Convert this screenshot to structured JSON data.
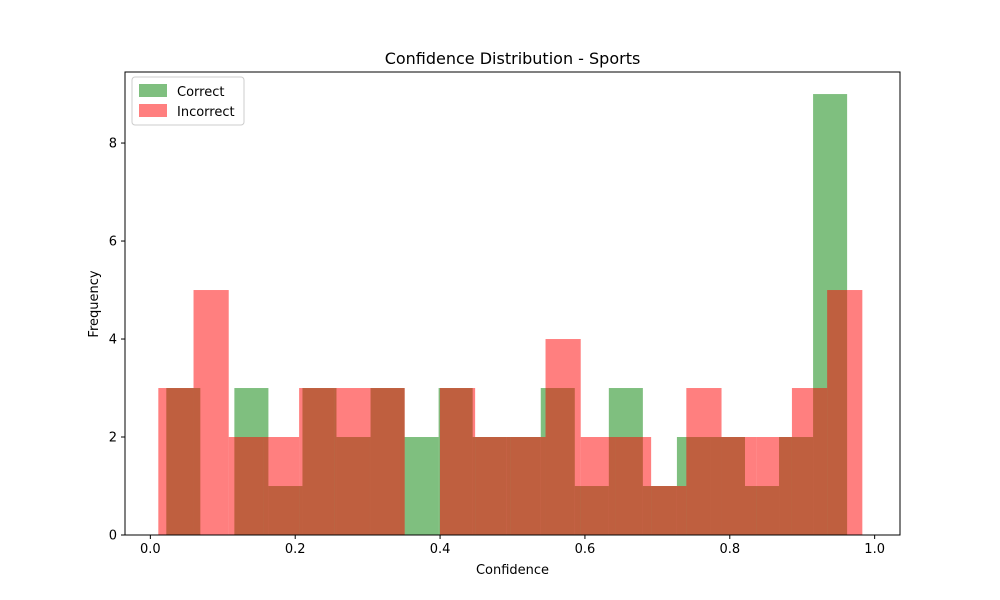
{
  "chart_data": {
    "type": "bar",
    "title": "Confidence Distribution - Sports",
    "xlabel": "Confidence",
    "ylabel": "Frequency",
    "xlim": [
      -0.035,
      1.035
    ],
    "ylim": [
      0,
      9.45
    ],
    "xticks": [
      0.0,
      0.2,
      0.4,
      0.6,
      0.8,
      1.0
    ],
    "xtick_labels": [
      "0.0",
      "0.2",
      "0.4",
      "0.6",
      "0.8",
      "1.0"
    ],
    "yticks": [
      0,
      2,
      4,
      6,
      8
    ],
    "ytick_labels": [
      "0",
      "2",
      "4",
      "6",
      "8"
    ],
    "grid": false,
    "legend_position": "top-left",
    "series": [
      {
        "name": "Correct",
        "color": "#008000",
        "alpha": 0.5,
        "bin_edges": [
          0.022,
          0.069,
          0.116,
          0.163,
          0.21,
          0.257,
          0.304,
          0.351,
          0.398,
          0.445,
          0.492,
          0.539,
          0.586,
          0.633,
          0.68,
          0.727,
          0.774,
          0.821,
          0.868,
          0.915,
          0.962
        ],
        "counts": [
          3,
          0,
          3,
          1,
          3,
          2,
          3,
          2,
          3,
          2,
          2,
          3,
          1,
          3,
          1,
          2,
          2,
          1,
          2,
          9
        ]
      },
      {
        "name": "Incorrect",
        "color": "#ff0000",
        "alpha": 0.5,
        "bin_edges": [
          0.011,
          0.0596,
          0.1082,
          0.1568,
          0.2054,
          0.254,
          0.3026,
          0.3512,
          0.3998,
          0.4484,
          0.497,
          0.5456,
          0.5942,
          0.6428,
          0.6914,
          0.74,
          0.7886,
          0.8372,
          0.8858,
          0.9344,
          0.983
        ],
        "counts": [
          3,
          5,
          2,
          2,
          3,
          3,
          3,
          0,
          3,
          2,
          2,
          4,
          2,
          2,
          1,
          3,
          2,
          2,
          3,
          5
        ]
      }
    ]
  }
}
